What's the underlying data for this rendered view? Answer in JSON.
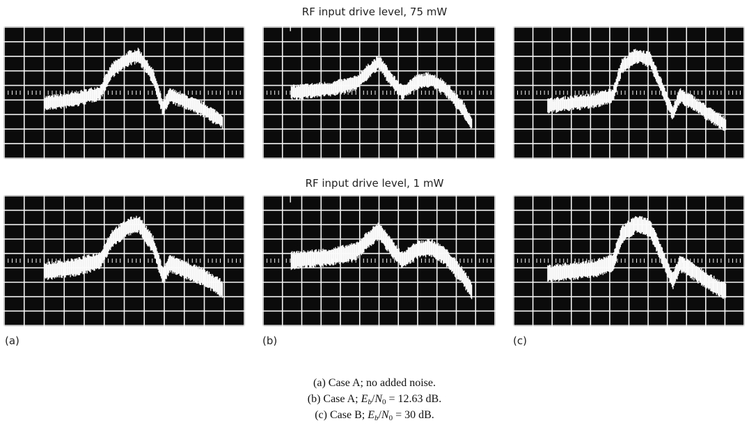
{
  "top_heading": "RF input drive level, 75 mW",
  "bottom_heading": "RF input drive level, 1 mW",
  "panel_labels": [
    "(a)",
    "(b)",
    "(c)"
  ],
  "caption": [
    [
      "(a) Case A; no added noise."
    ],
    [
      "(b) Case A; ",
      "E",
      "b",
      "/",
      "N",
      "0",
      " = 12.63 dB."
    ],
    [
      "(c) Case B; ",
      "E",
      "b",
      "/",
      "N",
      "0",
      " = 30 dB."
    ]
  ]
}
